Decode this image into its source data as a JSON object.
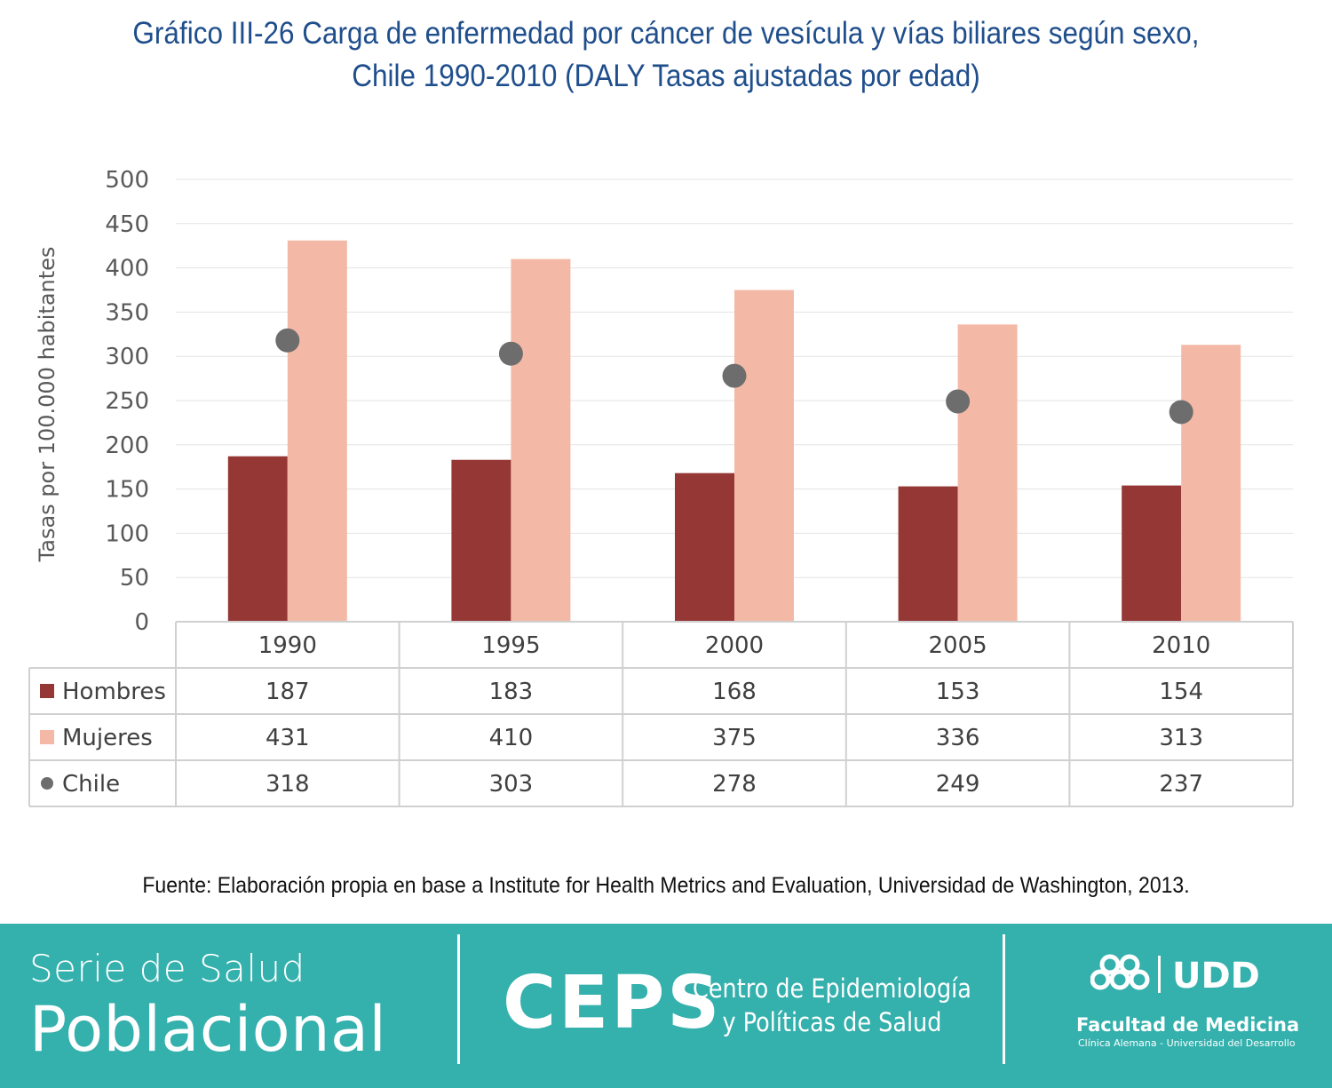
{
  "title_lines": [
    "Gráfico III-26 Carga de enfermedad por cáncer de vesícula y vías biliares según sexo,",
    "Chile 1990-2010 (DALY Tasas ajustadas por edad)"
  ],
  "chart_data": {
    "type": "bar",
    "categories": [
      "1990",
      "1995",
      "2000",
      "2005",
      "2010"
    ],
    "series": [
      {
        "name": "Hombres",
        "kind": "bar",
        "color": "#953735",
        "values": [
          187,
          183,
          168,
          153,
          154
        ]
      },
      {
        "name": "Mujeres",
        "kind": "bar",
        "color": "#f4b9a6",
        "values": [
          431,
          410,
          375,
          336,
          313
        ]
      },
      {
        "name": "Chile",
        "kind": "marker",
        "color": "#6d6d6d",
        "values": [
          318,
          303,
          278,
          249,
          237
        ]
      }
    ],
    "ylabel": "Tasas por 100.000 habitantes",
    "ylim": [
      0,
      500
    ],
    "yticks": [
      "0",
      "50",
      "100",
      "150",
      "200",
      "250",
      "300",
      "350",
      "400",
      "450",
      "500"
    ],
    "grid": true,
    "legend": "data table below the chart"
  },
  "source": "Fuente: Elaboración propia en base a Institute for Health Metrics and Evaluation, Universidad de Washington, 2013.",
  "footer": {
    "series_line1": "Serie de Salud",
    "series_line2": "Poblacional",
    "ceps_acronym": "CEPS",
    "ceps_name_line1": "Centro de Epidemiología",
    "ceps_name_line2": "y Políticas de Salud",
    "udd_logo_text": "UDD",
    "udd_faculty": "Facultad de Medicina",
    "udd_sub": "Clínica Alemana - Universidad del Desarrollo"
  }
}
